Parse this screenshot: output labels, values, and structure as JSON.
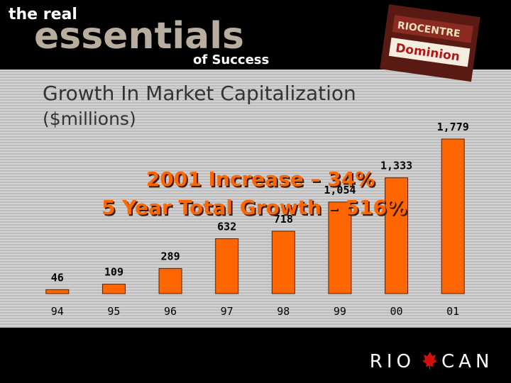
{
  "header": {
    "line1": "the real",
    "line2": "essentials",
    "line3": "of Success"
  },
  "sign": {
    "top": "RIOCENTRE",
    "store": "Dominion"
  },
  "chart_data": {
    "type": "bar",
    "title": "Growth In Market Capitalization",
    "subtitle": "($millions)",
    "annotations": [
      "2001 Increase – 34%",
      "5 Year Total Growth – 516%"
    ],
    "categories": [
      "94",
      "95",
      "96",
      "97",
      "98",
      "99",
      "00",
      "01"
    ],
    "values": [
      46,
      109,
      289,
      632,
      718,
      1054,
      1333,
      1779
    ],
    "value_labels": [
      "46",
      "109",
      "289",
      "632",
      "718",
      "1,054",
      "1,333",
      "1,779"
    ],
    "color": "#ff6600"
  },
  "footer": {
    "logo_left": "RIO",
    "logo_right": "CAN"
  }
}
